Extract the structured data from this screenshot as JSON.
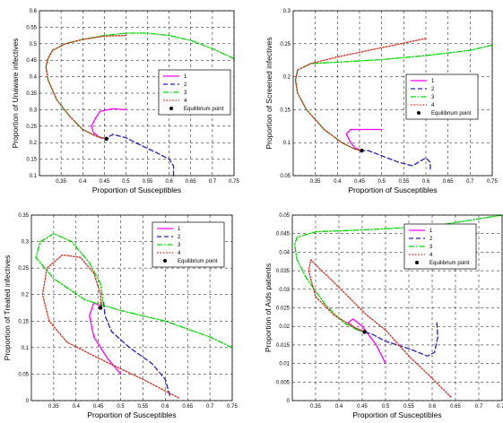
{
  "chart_data": [
    {
      "type": "line",
      "xlabel": "Proportion of Susceptibles",
      "ylabel": "Proportion of Unaware infectives",
      "xlim": [
        0.3,
        0.75
      ],
      "ylim": [
        0.1,
        0.6
      ],
      "xticks": [
        0.35,
        0.4,
        0.45,
        0.5,
        0.55,
        0.6,
        0.65,
        0.7,
        0.75
      ],
      "xtick_labels": [
        "0.35",
        "0.4",
        "0.45",
        "0.5",
        "0.55",
        "0.6",
        "0.65",
        "0.7",
        "0.75"
      ],
      "yticks": [
        0.1,
        0.15,
        0.2,
        0.25,
        0.3,
        0.35,
        0.4,
        0.45,
        0.5,
        0.55,
        0.6
      ],
      "ytick_labels": [
        "0.1",
        "0.15",
        "0.2",
        "0.25",
        "0.3",
        "0.35",
        "0.4",
        "0.45",
        "0.5",
        "0.55",
        "0.6"
      ],
      "grid": true,
      "legend_position": "right",
      "series": [
        {
          "name": "1",
          "color": "#ff00ff",
          "style": "solid",
          "points": [
            [
              0.5,
              0.3
            ],
            [
              0.47,
              0.303
            ],
            [
              0.44,
              0.295
            ],
            [
              0.43,
              0.275
            ],
            [
              0.42,
              0.25
            ],
            [
              0.425,
              0.23
            ],
            [
              0.44,
              0.215
            ],
            [
              0.455,
              0.212
            ]
          ]
        },
        {
          "name": "2",
          "color": "#1f1fbf",
          "style": "dashed",
          "points": [
            [
              0.61,
              0.1
            ],
            [
              0.61,
              0.13
            ],
            [
              0.6,
              0.15
            ],
            [
              0.57,
              0.17
            ],
            [
              0.53,
              0.195
            ],
            [
              0.5,
              0.215
            ],
            [
              0.47,
              0.225
            ],
            [
              0.46,
              0.218
            ],
            [
              0.455,
              0.212
            ]
          ]
        },
        {
          "name": "3",
          "color": "#00d800",
          "style": "dashdot",
          "points": [
            [
              0.75,
              0.455
            ],
            [
              0.7,
              0.485
            ],
            [
              0.65,
              0.51
            ],
            [
              0.6,
              0.525
            ],
            [
              0.55,
              0.532
            ],
            [
              0.5,
              0.532
            ],
            [
              0.45,
              0.525
            ],
            [
              0.4,
              0.513
            ],
            [
              0.36,
              0.5
            ],
            [
              0.33,
              0.48
            ],
            [
              0.32,
              0.455
            ],
            [
              0.315,
              0.43
            ],
            [
              0.32,
              0.39
            ],
            [
              0.34,
              0.33
            ],
            [
              0.37,
              0.28
            ],
            [
              0.4,
              0.24
            ],
            [
              0.43,
              0.22
            ],
            [
              0.455,
              0.212
            ]
          ]
        },
        {
          "name": "4",
          "color": "#d22b1d",
          "style": "dotted",
          "points": [
            [
              0.5,
              0.525
            ],
            [
              0.45,
              0.523
            ],
            [
              0.4,
              0.513
            ],
            [
              0.36,
              0.5
            ],
            [
              0.33,
              0.48
            ],
            [
              0.32,
              0.455
            ],
            [
              0.315,
              0.43
            ],
            [
              0.32,
              0.39
            ],
            [
              0.34,
              0.33
            ],
            [
              0.37,
              0.28
            ],
            [
              0.4,
              0.24
            ],
            [
              0.43,
              0.22
            ],
            [
              0.455,
              0.212
            ]
          ]
        }
      ],
      "equilibrium_point": [
        0.455,
        0.212
      ],
      "legend": [
        "1",
        "2",
        "3",
        "4",
        "Equilibrium point"
      ]
    },
    {
      "type": "line",
      "xlabel": "Proportion of Susceptibles",
      "ylabel": "Proportion of Screened infectives",
      "xlim": [
        0.3,
        0.75
      ],
      "ylim": [
        0.05,
        0.3
      ],
      "xticks": [
        0.35,
        0.4,
        0.45,
        0.5,
        0.55,
        0.6,
        0.65,
        0.7,
        0.75
      ],
      "xtick_labels": [
        "0.35",
        "0.4",
        "0.45",
        "0.5",
        "0.55",
        "0.6",
        "0.65",
        "0.7",
        "0.75"
      ],
      "yticks": [
        0.05,
        0.1,
        0.15,
        0.2,
        0.25,
        0.3
      ],
      "ytick_labels": [
        "0.05",
        "0.1",
        "0.15",
        "0.2",
        "0.25",
        "0.3"
      ],
      "grid": true,
      "legend_position": "right",
      "series": [
        {
          "name": "1",
          "color": "#ff00ff",
          "style": "solid",
          "points": [
            [
              0.5,
              0.12
            ],
            [
              0.45,
              0.12
            ],
            [
              0.43,
              0.12
            ],
            [
              0.42,
              0.113
            ],
            [
              0.43,
              0.1
            ],
            [
              0.44,
              0.092
            ],
            [
              0.455,
              0.088
            ]
          ]
        },
        {
          "name": "2",
          "color": "#1f1fbf",
          "style": "dashed",
          "points": [
            [
              0.61,
              0.06
            ],
            [
              0.61,
              0.07
            ],
            [
              0.6,
              0.077
            ],
            [
              0.57,
              0.065
            ],
            [
              0.54,
              0.07
            ],
            [
              0.5,
              0.08
            ],
            [
              0.47,
              0.088
            ],
            [
              0.455,
              0.088
            ]
          ]
        },
        {
          "name": "3",
          "color": "#00d800",
          "style": "dashdot",
          "points": [
            [
              0.75,
              0.248
            ],
            [
              0.7,
              0.24
            ],
            [
              0.6,
              0.232
            ],
            [
              0.5,
              0.226
            ],
            [
              0.4,
              0.222
            ],
            [
              0.34,
              0.22
            ],
            [
              0.31,
              0.21
            ],
            [
              0.305,
              0.195
            ],
            [
              0.31,
              0.175
            ],
            [
              0.33,
              0.15
            ],
            [
              0.37,
              0.12
            ],
            [
              0.41,
              0.1
            ],
            [
              0.44,
              0.09
            ],
            [
              0.455,
              0.088
            ]
          ]
        },
        {
          "name": "4",
          "color": "#d22b1d",
          "style": "dotted",
          "points": [
            [
              0.6,
              0.258
            ],
            [
              0.5,
              0.244
            ],
            [
              0.4,
              0.23
            ],
            [
              0.34,
              0.22
            ],
            [
              0.31,
              0.21
            ],
            [
              0.305,
              0.195
            ],
            [
              0.31,
              0.175
            ],
            [
              0.33,
              0.15
            ],
            [
              0.37,
              0.12
            ],
            [
              0.41,
              0.1
            ],
            [
              0.44,
              0.09
            ],
            [
              0.455,
              0.088
            ]
          ]
        }
      ],
      "equilibrium_point": [
        0.455,
        0.088
      ],
      "legend": [
        "1",
        "2",
        "3",
        "4",
        "Equilibrium point"
      ]
    },
    {
      "type": "line",
      "xlabel": "Proportion of Susceptibles",
      "ylabel": "Proportion of Treated infectives",
      "xlim": [
        0.3,
        0.75
      ],
      "ylim": [
        0,
        0.35
      ],
      "xticks": [
        0.35,
        0.4,
        0.45,
        0.5,
        0.55,
        0.6,
        0.65,
        0.7,
        0.75
      ],
      "xtick_labels": [
        "0.35",
        "0.4",
        "0.45",
        "0.5",
        "0.55",
        "0.6",
        "0.65",
        "0.7",
        "0.75"
      ],
      "yticks": [
        0,
        0.05,
        0.1,
        0.15,
        0.2,
        0.25,
        0.3,
        0.35
      ],
      "ytick_labels": [
        "0",
        "0.05",
        "0.1",
        "0.15",
        "0.2",
        "0.25",
        "0.3",
        "0.35"
      ],
      "grid": true,
      "legend_position": "top-right",
      "series": [
        {
          "name": "1",
          "color": "#ff00ff",
          "style": "solid",
          "points": [
            [
              0.5,
              0.05
            ],
            [
              0.47,
              0.08
            ],
            [
              0.44,
              0.12
            ],
            [
              0.43,
              0.16
            ],
            [
              0.44,
              0.185
            ],
            [
              0.45,
              0.18
            ],
            [
              0.455,
              0.175
            ]
          ]
        },
        {
          "name": "2",
          "color": "#1f1fbf",
          "style": "dashed",
          "points": [
            [
              0.61,
              0.01
            ],
            [
              0.6,
              0.04
            ],
            [
              0.57,
              0.07
            ],
            [
              0.52,
              0.1
            ],
            [
              0.48,
              0.13
            ],
            [
              0.465,
              0.16
            ],
            [
              0.462,
              0.185
            ],
            [
              0.455,
              0.175
            ]
          ]
        },
        {
          "name": "3",
          "color": "#00d800",
          "style": "dashdot",
          "points": [
            [
              0.75,
              0.1
            ],
            [
              0.7,
              0.12
            ],
            [
              0.6,
              0.15
            ],
            [
              0.5,
              0.17
            ],
            [
              0.42,
              0.19
            ],
            [
              0.35,
              0.23
            ],
            [
              0.31,
              0.27
            ],
            [
              0.32,
              0.3
            ],
            [
              0.35,
              0.315
            ],
            [
              0.39,
              0.3
            ],
            [
              0.43,
              0.26
            ],
            [
              0.455,
              0.22
            ],
            [
              0.46,
              0.19
            ],
            [
              0.455,
              0.175
            ]
          ]
        },
        {
          "name": "4",
          "color": "#d22b1d",
          "style": "dotted",
          "points": [
            [
              0.63,
              0.005
            ],
            [
              0.55,
              0.04
            ],
            [
              0.45,
              0.08
            ],
            [
              0.38,
              0.11
            ],
            [
              0.34,
              0.15
            ],
            [
              0.325,
              0.2
            ],
            [
              0.335,
              0.25
            ],
            [
              0.37,
              0.275
            ],
            [
              0.41,
              0.27
            ],
            [
              0.44,
              0.24
            ],
            [
              0.455,
              0.2
            ],
            [
              0.455,
              0.175
            ]
          ]
        }
      ],
      "equilibrium_point": [
        0.455,
        0.175
      ],
      "legend": [
        "1",
        "2",
        "3",
        "4",
        "Equilibrium point"
      ]
    },
    {
      "type": "line",
      "xlabel": "Proportion of Susceptibles",
      "ylabel": "Proportion of Aids patients",
      "xlim": [
        0.3,
        0.75
      ],
      "ylim": [
        0,
        0.05
      ],
      "xticks": [
        0.35,
        0.4,
        0.45,
        0.5,
        0.55,
        0.6,
        0.65,
        0.7,
        0.75
      ],
      "xtick_labels": [
        "0.35",
        "0.4",
        "0.45",
        "0.5",
        "0.55",
        "0.6",
        "0.65",
        "0.7",
        "0.75"
      ],
      "yticks": [
        0,
        0.005,
        0.01,
        0.015,
        0.02,
        0.025,
        0.03,
        0.035,
        0.04,
        0.045,
        0.05
      ],
      "ytick_labels": [
        "0",
        "0.005",
        "0.01",
        "0.015",
        "0.02",
        "0.025",
        "0.03",
        "0.035",
        "0.04",
        "0.045",
        "0.05"
      ],
      "grid": true,
      "legend_position": "right",
      "series": [
        {
          "name": "1",
          "color": "#ff00ff",
          "style": "solid",
          "points": [
            [
              0.5,
              0.01
            ],
            [
              0.48,
              0.015
            ],
            [
              0.45,
              0.02
            ],
            [
              0.43,
              0.022
            ],
            [
              0.42,
              0.021
            ],
            [
              0.44,
              0.019
            ],
            [
              0.455,
              0.0185
            ]
          ]
        },
        {
          "name": "2",
          "color": "#1f1fbf",
          "style": "dashed",
          "points": [
            [
              0.61,
              0.021
            ],
            [
              0.612,
              0.017
            ],
            [
              0.605,
              0.013
            ],
            [
              0.59,
              0.012
            ],
            [
              0.55,
              0.014
            ],
            [
              0.5,
              0.016
            ],
            [
              0.47,
              0.018
            ],
            [
              0.455,
              0.0185
            ]
          ]
        },
        {
          "name": "3",
          "color": "#00d800",
          "style": "dashdot",
          "points": [
            [
              0.75,
              0.05
            ],
            [
              0.6,
              0.047
            ],
            [
              0.45,
              0.046
            ],
            [
              0.35,
              0.0455
            ],
            [
              0.31,
              0.044
            ],
            [
              0.305,
              0.042
            ],
            [
              0.31,
              0.038
            ],
            [
              0.33,
              0.033
            ],
            [
              0.37,
              0.026
            ],
            [
              0.41,
              0.021
            ],
            [
              0.44,
              0.019
            ],
            [
              0.455,
              0.0185
            ]
          ]
        },
        {
          "name": "4",
          "color": "#d22b1d",
          "style": "dotted",
          "points": [
            [
              0.64,
              0.001
            ],
            [
              0.6,
              0.006
            ],
            [
              0.55,
              0.012
            ],
            [
              0.5,
              0.019
            ],
            [
              0.46,
              0.023
            ],
            [
              0.42,
              0.028
            ],
            [
              0.38,
              0.033
            ],
            [
              0.355,
              0.036
            ],
            [
              0.34,
              0.038
            ],
            [
              0.335,
              0.035
            ],
            [
              0.35,
              0.028
            ],
            [
              0.39,
              0.023
            ],
            [
              0.43,
              0.02
            ],
            [
              0.455,
              0.0185
            ]
          ]
        }
      ],
      "equilibrium_point": [
        0.455,
        0.0185
      ],
      "legend": [
        "1",
        "2",
        "3",
        "4",
        "Equilibrium point"
      ]
    }
  ]
}
